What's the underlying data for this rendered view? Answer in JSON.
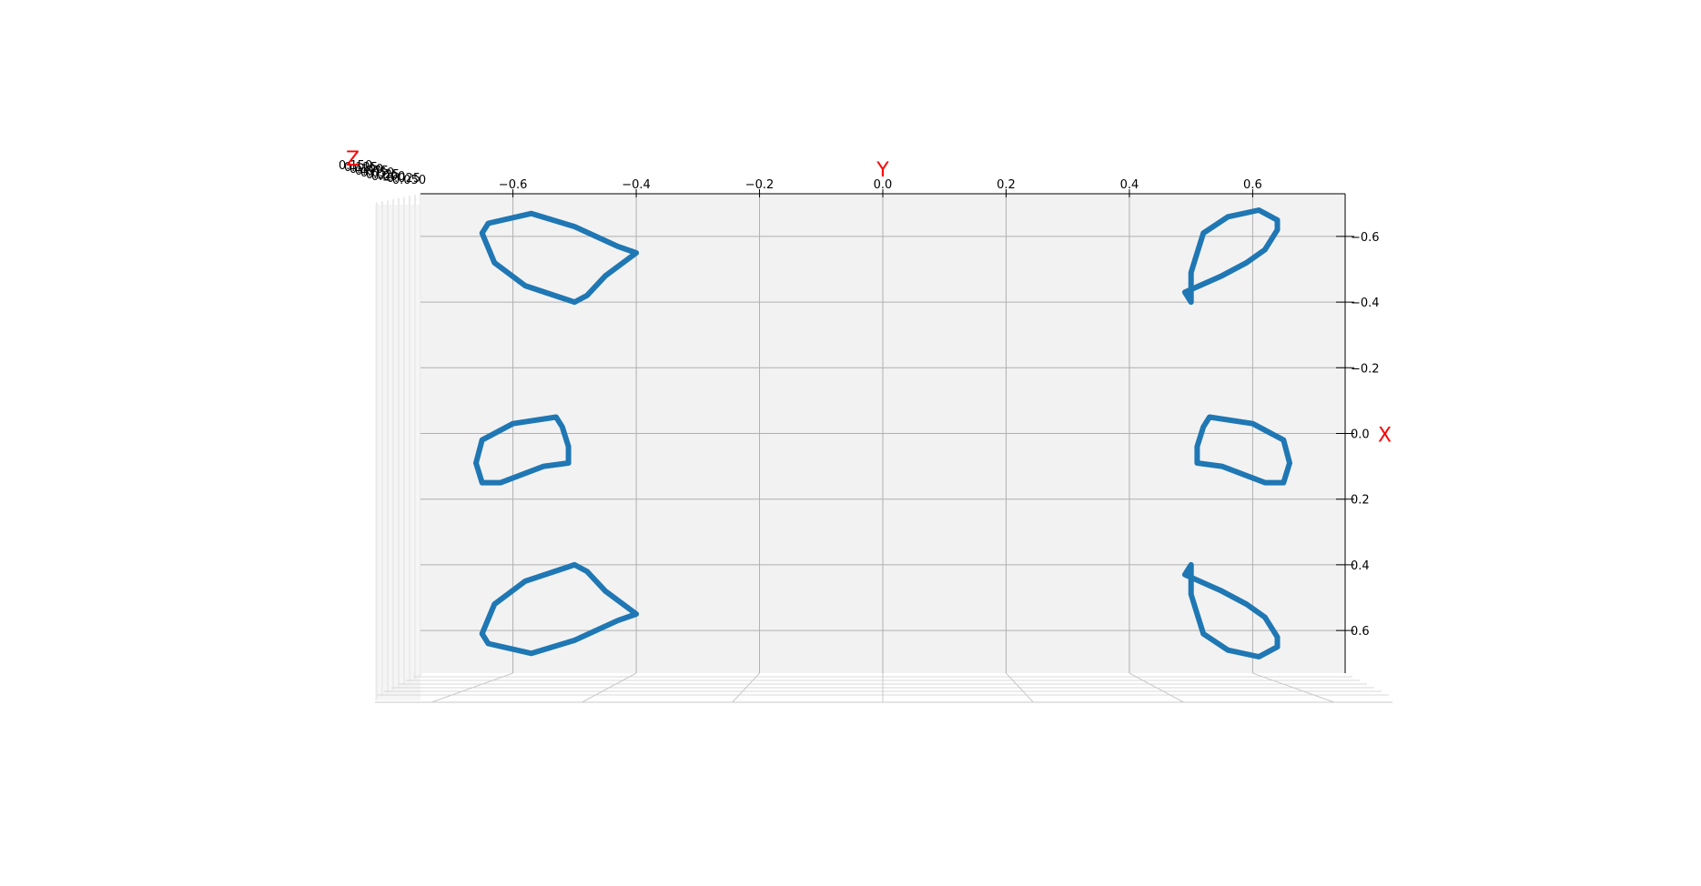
{
  "chart_data": {
    "type": "line3d",
    "axes": {
      "x": {
        "label": "X",
        "label_color": "#ff0000",
        "ticks": [
          -0.6,
          -0.4,
          -0.2,
          0.0,
          0.2,
          0.4,
          0.6
        ],
        "tick_labels": [
          "−0.6",
          "−0.4",
          "−0.2",
          "0.0",
          "0.2",
          "0.4",
          "0.6"
        ],
        "range": [
          -0.73,
          0.73
        ]
      },
      "y": {
        "label": "Y",
        "label_color": "#ff0000",
        "ticks": [
          -0.6,
          -0.4,
          -0.2,
          0.0,
          0.2,
          0.4,
          0.6
        ],
        "tick_labels": [
          "−0.6",
          "−0.4",
          "−0.2",
          "0.0",
          "0.2",
          "0.4",
          "0.6"
        ],
        "range": [
          -0.75,
          0.75
        ]
      },
      "z": {
        "label": "Z",
        "label_color": "#ff0000",
        "tick_labels": [
          "0.150",
          "0.125",
          "0.100",
          "0.075",
          "0.050",
          "0.025",
          "0.000",
          "−0.025",
          "−0.050"
        ]
      }
    },
    "series_color": "#1f77b4",
    "grid": true,
    "pane_color": "#f2f2f2",
    "shapes": [
      {
        "points": [
          [
            -0.55,
            -0.4
          ],
          [
            -0.57,
            -0.43
          ],
          [
            -0.63,
            -0.5
          ],
          [
            -0.67,
            -0.57
          ],
          [
            -0.64,
            -0.64
          ],
          [
            -0.61,
            -0.65
          ],
          [
            -0.52,
            -0.63
          ],
          [
            -0.45,
            -0.58
          ],
          [
            -0.4,
            -0.5
          ],
          [
            -0.42,
            -0.48
          ],
          [
            -0.48,
            -0.45
          ],
          [
            -0.55,
            -0.4
          ]
        ]
      },
      {
        "points": [
          [
            0.55,
            -0.4
          ],
          [
            0.57,
            -0.43
          ],
          [
            0.63,
            -0.5
          ],
          [
            0.67,
            -0.57
          ],
          [
            0.64,
            -0.64
          ],
          [
            0.61,
            -0.65
          ],
          [
            0.52,
            -0.63
          ],
          [
            0.45,
            -0.58
          ],
          [
            0.4,
            -0.5
          ],
          [
            0.42,
            -0.48
          ],
          [
            0.48,
            -0.45
          ],
          [
            0.55,
            -0.4
          ]
        ]
      },
      {
        "points": [
          [
            -0.05,
            -0.53
          ],
          [
            -0.03,
            -0.6
          ],
          [
            0.02,
            -0.65
          ],
          [
            0.09,
            -0.66
          ],
          [
            0.15,
            -0.65
          ],
          [
            0.15,
            -0.62
          ],
          [
            0.1,
            -0.55
          ],
          [
            0.09,
            -0.51
          ],
          [
            0.04,
            -0.51
          ],
          [
            -0.02,
            -0.52
          ],
          [
            -0.05,
            -0.53
          ]
        ]
      },
      {
        "points": [
          [
            -0.05,
            0.53
          ],
          [
            -0.03,
            0.6
          ],
          [
            0.02,
            0.65
          ],
          [
            0.09,
            0.66
          ],
          [
            0.15,
            0.65
          ],
          [
            0.15,
            0.62
          ],
          [
            0.1,
            0.55
          ],
          [
            0.09,
            0.51
          ],
          [
            0.04,
            0.51
          ],
          [
            -0.02,
            0.52
          ],
          [
            -0.05,
            0.53
          ]
        ]
      },
      {
        "points": [
          [
            0.4,
            0.5
          ],
          [
            0.49,
            0.5
          ],
          [
            0.55,
            0.51
          ],
          [
            0.61,
            0.52
          ],
          [
            0.66,
            0.56
          ],
          [
            0.68,
            0.61
          ],
          [
            0.65,
            0.64
          ],
          [
            0.62,
            0.64
          ],
          [
            0.56,
            0.62
          ],
          [
            0.52,
            0.59
          ],
          [
            0.48,
            0.55
          ],
          [
            0.43,
            0.49
          ],
          [
            0.4,
            0.5
          ]
        ]
      },
      {
        "points": [
          [
            -0.4,
            0.5
          ],
          [
            -0.49,
            0.5
          ],
          [
            -0.55,
            0.51
          ],
          [
            -0.61,
            0.52
          ],
          [
            -0.66,
            0.56
          ],
          [
            -0.68,
            0.61
          ],
          [
            -0.65,
            0.64
          ],
          [
            -0.62,
            0.64
          ],
          [
            -0.56,
            0.62
          ],
          [
            -0.52,
            0.59
          ],
          [
            -0.48,
            0.55
          ],
          [
            -0.43,
            0.49
          ],
          [
            -0.4,
            0.5
          ]
        ]
      }
    ]
  }
}
